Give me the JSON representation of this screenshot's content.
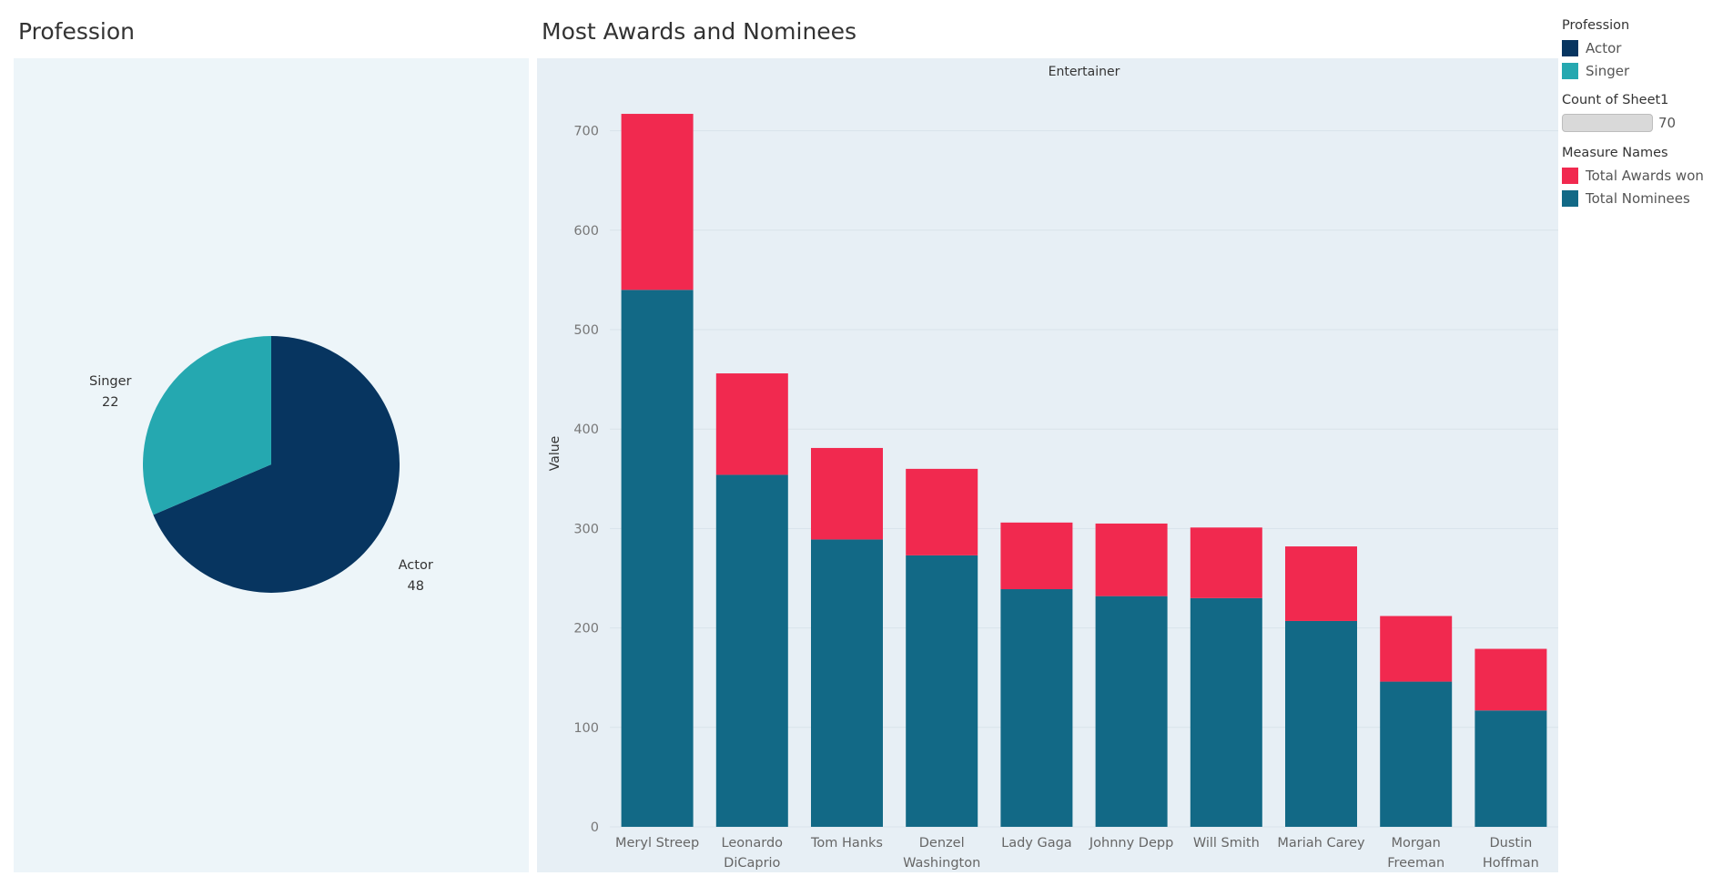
{
  "pie": {
    "title": "Profession",
    "colors": {
      "Actor": "#073560",
      "Singer": "#25a8b0"
    }
  },
  "bar": {
    "title": "Most Awards and Nominees",
    "colors": {
      "Total Awards won": "#f1294f",
      "Total Nominees": "#126986"
    }
  },
  "legend": {
    "profession_title": "Profession",
    "profession_items": [
      {
        "label": "Actor",
        "color": "#073560"
      },
      {
        "label": "Singer",
        "color": "#25a8b0"
      }
    ],
    "size_title": "Count of Sheet1",
    "size_value": "70",
    "measure_title": "Measure Names",
    "measure_items": [
      {
        "label": "Total Awards won",
        "color": "#f1294f"
      },
      {
        "label": "Total Nominees",
        "color": "#126986"
      }
    ]
  },
  "chart_data": [
    {
      "type": "pie",
      "title": "Profession",
      "slices": [
        {
          "label": "Actor",
          "value": 48
        },
        {
          "label": "Singer",
          "value": 22
        }
      ]
    },
    {
      "type": "bar",
      "stacked": true,
      "title": "Most Awards and Nominees",
      "column_header": "Entertainer",
      "ylabel": "Value",
      "ylim": [
        0,
        750
      ],
      "yticks": [
        0,
        100,
        200,
        300,
        400,
        500,
        600,
        700
      ],
      "grid": true,
      "categories": [
        [
          "Meryl Streep"
        ],
        [
          "Leonardo",
          "DiCaprio"
        ],
        [
          "Tom Hanks"
        ],
        [
          "Denzel",
          "Washington"
        ],
        [
          "Lady Gaga"
        ],
        [
          "Johnny Depp"
        ],
        [
          "Will Smith"
        ],
        [
          "Mariah Carey"
        ],
        [
          "Morgan",
          "Freeman"
        ],
        [
          "Dustin",
          "Hoffman"
        ]
      ],
      "series": [
        {
          "name": "Total Nominees",
          "values": [
            540,
            354,
            289,
            273,
            239,
            232,
            230,
            207,
            146,
            117
          ]
        },
        {
          "name": "Total Awards won",
          "values": [
            177,
            102,
            92,
            87,
            67,
            73,
            71,
            75,
            66,
            62
          ]
        }
      ]
    }
  ]
}
